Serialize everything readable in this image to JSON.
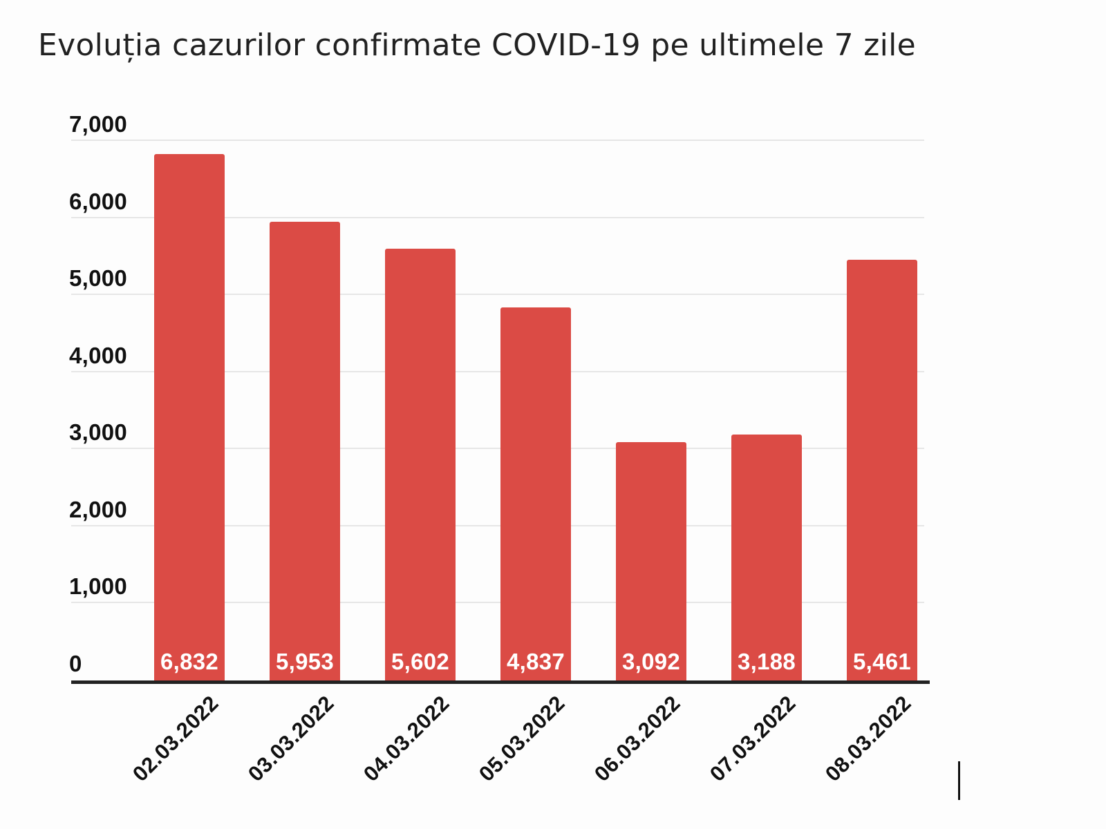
{
  "chart_data": {
    "type": "bar",
    "title": "Evoluția cazurilor confirmate COVID-19 pe ultimele 7 zile",
    "categories": [
      "02.03.2022",
      "03.03.2022",
      "04.03.2022",
      "05.03.2022",
      "06.03.2022",
      "07.03.2022",
      "08.03.2022"
    ],
    "values": [
      6832,
      5953,
      5602,
      4837,
      3092,
      3188,
      5461
    ],
    "value_labels": [
      "6,832",
      "5,953",
      "5,602",
      "4,837",
      "3,092",
      "3,188",
      "5,461"
    ],
    "y_ticks": [
      0,
      1000,
      2000,
      3000,
      4000,
      5000,
      6000,
      7000
    ],
    "y_tick_labels": [
      "0",
      "1,000",
      "2,000",
      "3,000",
      "4,000",
      "5,000",
      "6,000",
      "7,000"
    ],
    "ylim": [
      0,
      7000
    ],
    "xlabel": "",
    "ylabel": "",
    "legend": "none",
    "grid": "horizontal-only",
    "colors": {
      "bar": "#db4b45",
      "value_label": "#ffffff",
      "gridline": "#e6e6e6",
      "axis_line": "#222222",
      "tick_text": "#111111",
      "title_text": "#212121",
      "background": "#fdfdfd"
    }
  },
  "cursor": {
    "type": "text-caret"
  }
}
